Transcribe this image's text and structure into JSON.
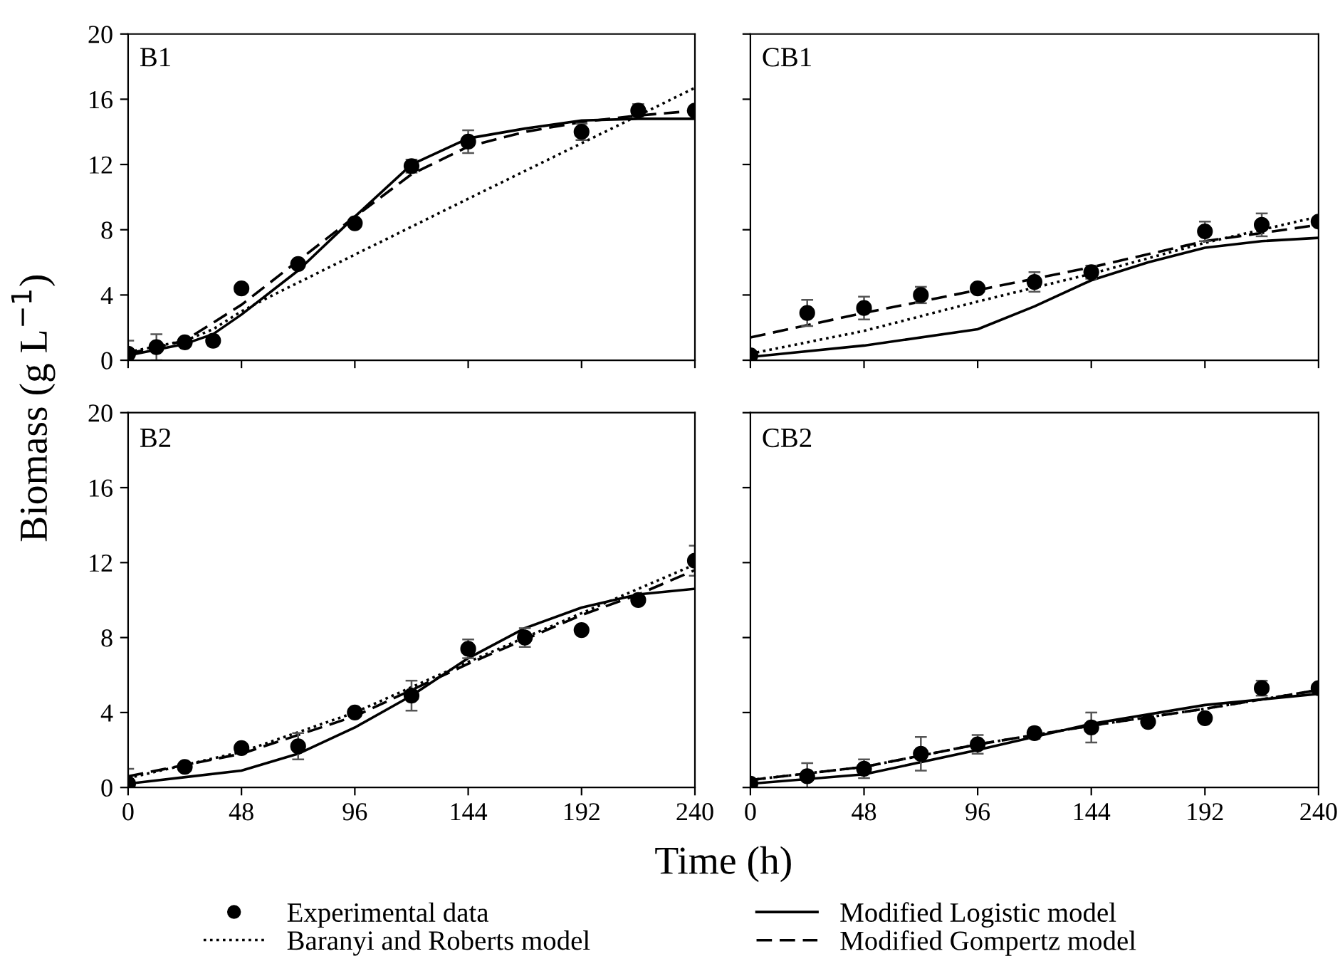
{
  "chart_data": [
    {
      "type": "scatter",
      "ylabel": "Biomass (g L$^{−1}$)",
      "annotations": [
        "B1"
      ],
      "xlim": [
        0,
        240
      ],
      "xticks": [
        0,
        48,
        96,
        144,
        192,
        240
      ],
      "ylim": [
        0,
        20
      ],
      "yticks": [
        0,
        4,
        8,
        12,
        16,
        20
      ],
      "tick_labels": "y",
      "legend": "bottom",
      "series": [
        {
          "name": "Experimental data",
          "marker": "circle",
          "color": "#000000",
          "x": [
            0,
            12,
            24,
            36,
            48,
            72,
            96,
            120,
            144,
            192,
            216,
            240
          ],
          "values": [
            0.4,
            0.8,
            1.1,
            1.2,
            4.4,
            5.9,
            8.4,
            11.9,
            13.4,
            14.0,
            15.3,
            15.3
          ],
          "errors": [
            0.8,
            0.8,
            null,
            0.3,
            null,
            null,
            null,
            0.4,
            0.7,
            0.5,
            0.4,
            null
          ]
        },
        {
          "name": "Baranyi and Roberts model",
          "type": "line",
          "line_style": "dotted",
          "color": "#000000",
          "x": [
            0,
            24,
            36,
            48,
            60,
            144,
            240
          ],
          "values": [
            0.5,
            1.2,
            1.9,
            3.0,
            3.9,
            9.9,
            16.7
          ]
        },
        {
          "name": "Modified Logistic model",
          "type": "line",
          "line_style": "solid",
          "color": "#000000",
          "x": [
            0,
            24,
            36,
            48,
            72,
            96,
            120,
            144,
            168,
            192,
            216,
            240
          ],
          "values": [
            0.3,
            1.0,
            1.6,
            2.8,
            5.5,
            8.8,
            12.0,
            13.6,
            14.2,
            14.7,
            14.8,
            14.8
          ]
        },
        {
          "name": "Modified Gompertz model",
          "type": "line",
          "line_style": "dashed",
          "color": "#000000",
          "x": [
            0,
            24,
            48,
            72,
            96,
            120,
            144,
            168,
            192,
            216,
            240
          ],
          "values": [
            0.4,
            1.2,
            3.4,
            6.1,
            8.8,
            11.4,
            13.1,
            14.0,
            14.6,
            15.0,
            15.3
          ]
        }
      ]
    },
    {
      "type": "scatter",
      "annotations": [
        "CB1"
      ],
      "xlim": [
        0,
        240
      ],
      "xticks": [
        0,
        48,
        96,
        144,
        192,
        240
      ],
      "ylim": [
        0,
        20
      ],
      "yticks": [
        0,
        4,
        8,
        12,
        16,
        20
      ],
      "tick_labels": false,
      "series": [
        {
          "marker": "circle",
          "color": "#000000",
          "x": [
            0,
            24,
            48,
            72,
            96,
            120,
            144,
            192,
            216,
            240
          ],
          "values": [
            0.3,
            2.9,
            3.2,
            4.0,
            4.4,
            4.8,
            5.4,
            7.9,
            8.3,
            8.5
          ],
          "errors": [
            null,
            0.8,
            0.7,
            0.5,
            null,
            0.6,
            0.4,
            0.6,
            0.7,
            null
          ]
        },
        {
          "type": "line",
          "line_style": "dotted",
          "color": "#000000",
          "x": [
            0,
            48,
            96,
            144,
            192,
            240
          ],
          "values": [
            0.4,
            1.8,
            3.6,
            5.3,
            7.2,
            8.8
          ]
        },
        {
          "type": "line",
          "line_style": "solid",
          "color": "#000000",
          "x": [
            0,
            48,
            96,
            120,
            144,
            168,
            192,
            216,
            240
          ],
          "values": [
            0.2,
            0.9,
            1.9,
            3.3,
            4.9,
            6.0,
            6.9,
            7.3,
            7.5
          ]
        },
        {
          "type": "line",
          "line_style": "dashed",
          "color": "#000000",
          "x": [
            0,
            48,
            96,
            144,
            192,
            240
          ],
          "values": [
            1.4,
            2.9,
            4.3,
            5.7,
            7.3,
            8.3
          ]
        }
      ]
    },
    {
      "type": "scatter",
      "xlabel": "Time (h)",
      "annotations": [
        "B2"
      ],
      "xlim": [
        0,
        240
      ],
      "xticks": [
        0,
        48,
        96,
        144,
        192,
        240
      ],
      "ylim": [
        0,
        20
      ],
      "yticks": [
        0,
        4,
        8,
        12,
        16,
        20
      ],
      "series": [
        {
          "marker": "circle",
          "color": "#000000",
          "x": [
            0,
            24,
            48,
            72,
            96,
            120,
            144,
            168,
            192,
            216,
            240
          ],
          "values": [
            0.2,
            1.1,
            2.1,
            2.2,
            4.0,
            4.9,
            7.4,
            8.0,
            8.4,
            10.0,
            12.1
          ],
          "errors": [
            0.8,
            null,
            null,
            0.7,
            null,
            0.8,
            0.5,
            0.5,
            null,
            null,
            0.8
          ]
        },
        {
          "type": "line",
          "line_style": "dotted",
          "color": "#000000",
          "x": [
            0,
            48,
            96,
            144,
            192,
            240
          ],
          "values": [
            0.5,
            1.9,
            4.0,
            6.7,
            9.3,
            11.9
          ]
        },
        {
          "type": "line",
          "line_style": "solid",
          "color": "#000000",
          "x": [
            0,
            48,
            72,
            96,
            120,
            144,
            168,
            192,
            216,
            240
          ],
          "values": [
            0.2,
            0.9,
            1.8,
            3.2,
            4.9,
            6.9,
            8.5,
            9.6,
            10.3,
            10.6
          ]
        },
        {
          "type": "line",
          "line_style": "dashed",
          "color": "#000000",
          "x": [
            0,
            48,
            96,
            120,
            144,
            168,
            192,
            216,
            240
          ],
          "values": [
            0.6,
            1.8,
            3.8,
            5.2,
            6.6,
            7.9,
            9.2,
            10.3,
            11.6
          ]
        }
      ]
    },
    {
      "type": "scatter",
      "annotations": [
        "CB2"
      ],
      "xlim": [
        0,
        240
      ],
      "xticks": [
        0,
        48,
        96,
        144,
        192,
        240
      ],
      "ylim": [
        0,
        20
      ],
      "yticks": [
        0,
        4,
        8,
        12,
        16,
        20
      ],
      "tick_labels": "x",
      "series": [
        {
          "marker": "circle",
          "color": "#000000",
          "x": [
            0,
            24,
            48,
            72,
            96,
            120,
            144,
            168,
            192,
            216,
            240
          ],
          "values": [
            0.2,
            0.6,
            1.0,
            1.8,
            2.3,
            2.9,
            3.2,
            3.5,
            3.7,
            5.3,
            5.3
          ],
          "errors": [
            null,
            0.7,
            0.5,
            0.9,
            0.5,
            0.3,
            0.8,
            null,
            null,
            0.4,
            null
          ]
        },
        {
          "type": "line",
          "line_style": "dotted",
          "color": "#000000",
          "x": [
            0,
            48,
            96,
            144,
            192,
            240
          ],
          "values": [
            0.4,
            1.1,
            2.3,
            3.3,
            4.2,
            5.2
          ]
        },
        {
          "type": "line",
          "line_style": "solid",
          "color": "#000000",
          "x": [
            0,
            48,
            96,
            144,
            192,
            240
          ],
          "values": [
            0.2,
            0.7,
            2.0,
            3.4,
            4.4,
            5.0
          ]
        },
        {
          "type": "line",
          "line_style": "dashed",
          "color": "#000000",
          "x": [
            0,
            48,
            96,
            144,
            192,
            240
          ],
          "values": [
            0.4,
            1.1,
            2.3,
            3.3,
            4.2,
            5.2
          ]
        }
      ]
    }
  ]
}
